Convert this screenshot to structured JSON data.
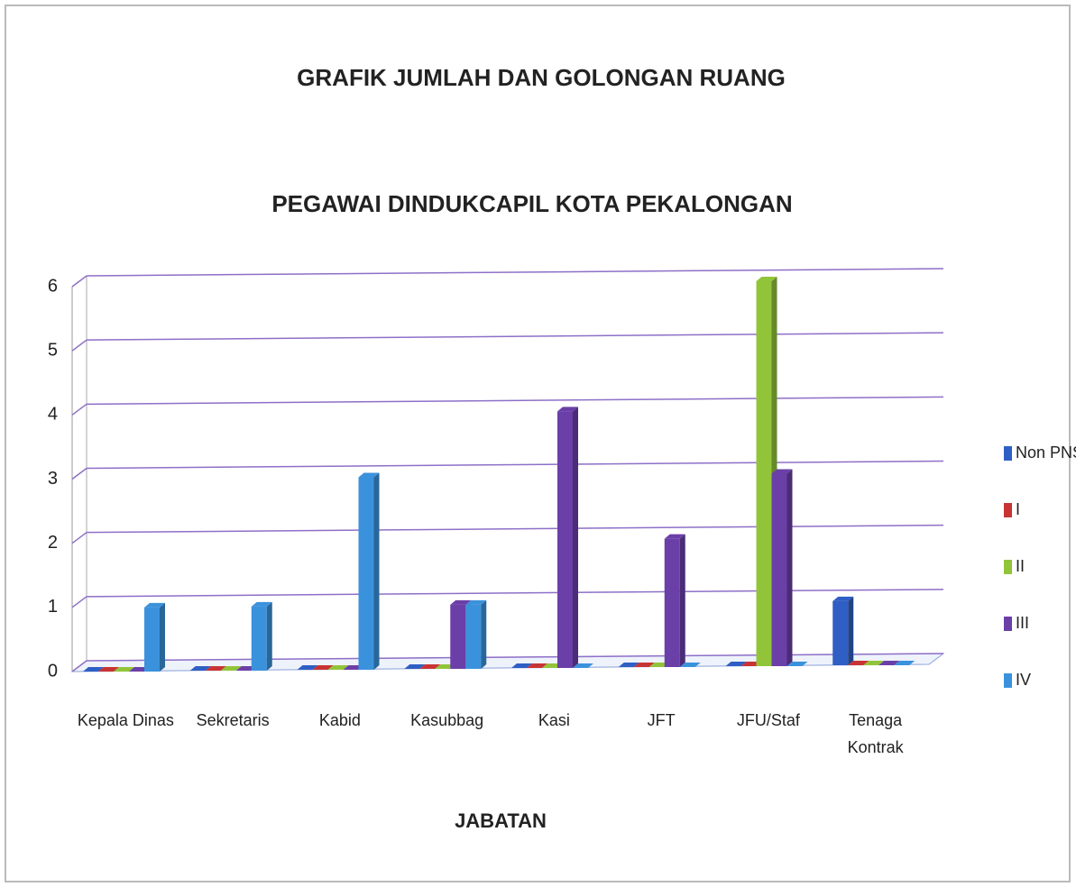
{
  "chart_data": {
    "type": "bar",
    "title": "GRAFIK JUMLAH DAN GOLONGAN RUANG",
    "subtitle": "PEGAWAI DINDUKCAPIL KOTA PEKALONGAN",
    "x_label": "JABATAN",
    "categories": [
      "Kepala Dinas",
      "Sekretaris",
      "Kabid",
      "Kasubbag",
      "Kasi",
      "JFT",
      "JFU/Staf",
      "Tenaga Kontrak"
    ],
    "series": [
      {
        "name": "Non PNS",
        "color": "#2f5fc4",
        "values": [
          0,
          0,
          0,
          0,
          0,
          0,
          0,
          1
        ]
      },
      {
        "name": "I",
        "color": "#c83434",
        "values": [
          0,
          0,
          0,
          0,
          0,
          0,
          0,
          0
        ]
      },
      {
        "name": "II",
        "color": "#92c43a",
        "values": [
          0,
          0,
          0,
          0,
          0,
          0,
          6,
          0
        ]
      },
      {
        "name": "III",
        "color": "#6b3fa8",
        "values": [
          0,
          0,
          0,
          1,
          4,
          2,
          3,
          0
        ]
      },
      {
        "name": "IV",
        "color": "#3b92dc",
        "values": [
          1,
          1,
          3,
          1,
          0,
          0,
          0,
          0
        ]
      }
    ],
    "ylim": [
      0,
      6
    ],
    "yticks": [
      0,
      1,
      2,
      3,
      4,
      5,
      6
    ],
    "grid": true,
    "legend": "right"
  }
}
